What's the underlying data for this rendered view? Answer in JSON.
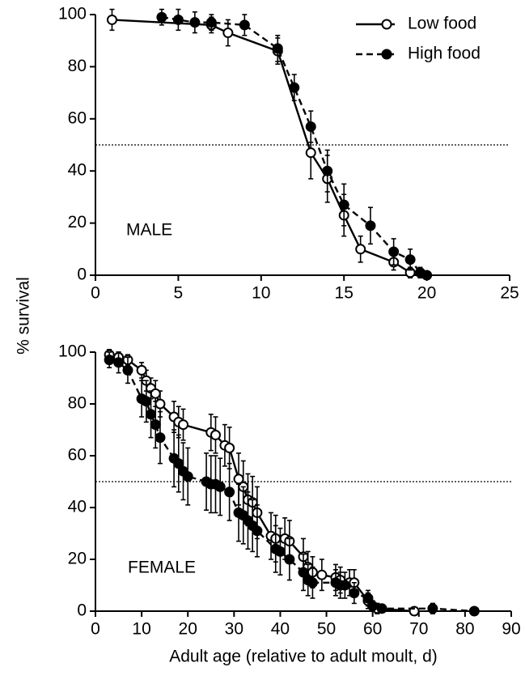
{
  "chart_data": [
    {
      "type": "line",
      "ylabel": "% survival",
      "annotation": "MALE",
      "xlim": [
        0,
        25
      ],
      "xticks": [
        0,
        5,
        10,
        15,
        20,
        25
      ],
      "ylim": [
        0,
        100
      ],
      "yticks": [
        0,
        20,
        40,
        60,
        80,
        100
      ],
      "hline": 50,
      "legend": "upper right",
      "series": [
        {
          "name": "Low food",
          "color": "#000000",
          "marker": "open",
          "dash": false,
          "x": [
            1,
            7,
            8,
            11,
            13,
            14,
            15,
            16,
            18,
            19
          ],
          "values": [
            98,
            96,
            93,
            86,
            47,
            37,
            23,
            10,
            5,
            1
          ],
          "errors": [
            4,
            3,
            5,
            5,
            10,
            9,
            8,
            5,
            3,
            2
          ]
        },
        {
          "name": "High food",
          "color": "#000000",
          "marker": "filled",
          "dash": true,
          "x": [
            4,
            5,
            6,
            7,
            9,
            11,
            12,
            13,
            14,
            15,
            16.6,
            18,
            19,
            19.6,
            20
          ],
          "values": [
            99,
            98,
            97,
            97,
            96,
            87,
            72,
            57,
            40,
            27,
            19,
            9,
            6,
            1,
            0
          ],
          "errors": [
            3,
            4,
            4,
            3,
            4,
            5,
            5,
            6,
            8,
            8,
            7,
            5,
            4,
            2,
            1
          ]
        }
      ]
    },
    {
      "type": "line",
      "xlabel": "Adult age (relative to adult moult, d)",
      "annotation": "FEMALE",
      "xlim": [
        0,
        90
      ],
      "xticks": [
        0,
        10,
        20,
        30,
        40,
        50,
        60,
        70,
        80,
        90
      ],
      "ylim": [
        0,
        100
      ],
      "yticks": [
        0,
        20,
        40,
        60,
        80,
        100
      ],
      "hline": 50,
      "series": [
        {
          "color": "#000000",
          "marker": "open",
          "dash": false,
          "x": [
            3,
            5,
            7,
            10,
            11,
            12,
            13,
            14,
            17,
            18,
            19,
            25,
            26,
            28,
            29,
            31,
            32,
            33,
            34,
            35,
            38,
            39,
            41,
            42,
            45,
            46,
            47,
            49,
            52,
            53,
            55,
            56,
            59,
            61,
            69
          ],
          "values": [
            99,
            98,
            97,
            93,
            89,
            86,
            84,
            80,
            75,
            73,
            72,
            69,
            68,
            64,
            63,
            51,
            48,
            43,
            42,
            38,
            29,
            28,
            28,
            27,
            21,
            17,
            15,
            14,
            13,
            12,
            11,
            11,
            4,
            1,
            0
          ],
          "errors": [
            2,
            2,
            2,
            3,
            4,
            4,
            5,
            5,
            6,
            6,
            6,
            7,
            7,
            8,
            8,
            10,
            10,
            10,
            10,
            10,
            9,
            9,
            8,
            8,
            7,
            6,
            6,
            6,
            5,
            5,
            5,
            5,
            3,
            2,
            1
          ]
        },
        {
          "color": "#000000",
          "marker": "filled",
          "dash": true,
          "x": [
            3,
            5,
            7,
            10,
            11,
            12,
            13,
            14,
            17,
            18,
            19,
            20,
            24,
            25,
            26,
            27,
            29,
            31,
            32,
            33,
            34,
            35,
            39,
            40,
            42,
            45,
            46,
            47,
            52,
            53,
            54,
            56,
            59,
            60,
            62,
            73,
            82
          ],
          "values": [
            97,
            96,
            93,
            82,
            81,
            76,
            72,
            67,
            59,
            57,
            54,
            52,
            50,
            49,
            49,
            48,
            46,
            38,
            37,
            35,
            33,
            31,
            24,
            23,
            20,
            15,
            12,
            11,
            11,
            10,
            10,
            7,
            5,
            2,
            1,
            1,
            0
          ],
          "errors": [
            3,
            4,
            5,
            7,
            8,
            9,
            9,
            10,
            11,
            11,
            11,
            11,
            11,
            11,
            11,
            11,
            11,
            11,
            11,
            11,
            10,
            10,
            9,
            9,
            8,
            7,
            6,
            6,
            5,
            5,
            5,
            4,
            3,
            2,
            1,
            2,
            1
          ]
        }
      ]
    }
  ]
}
